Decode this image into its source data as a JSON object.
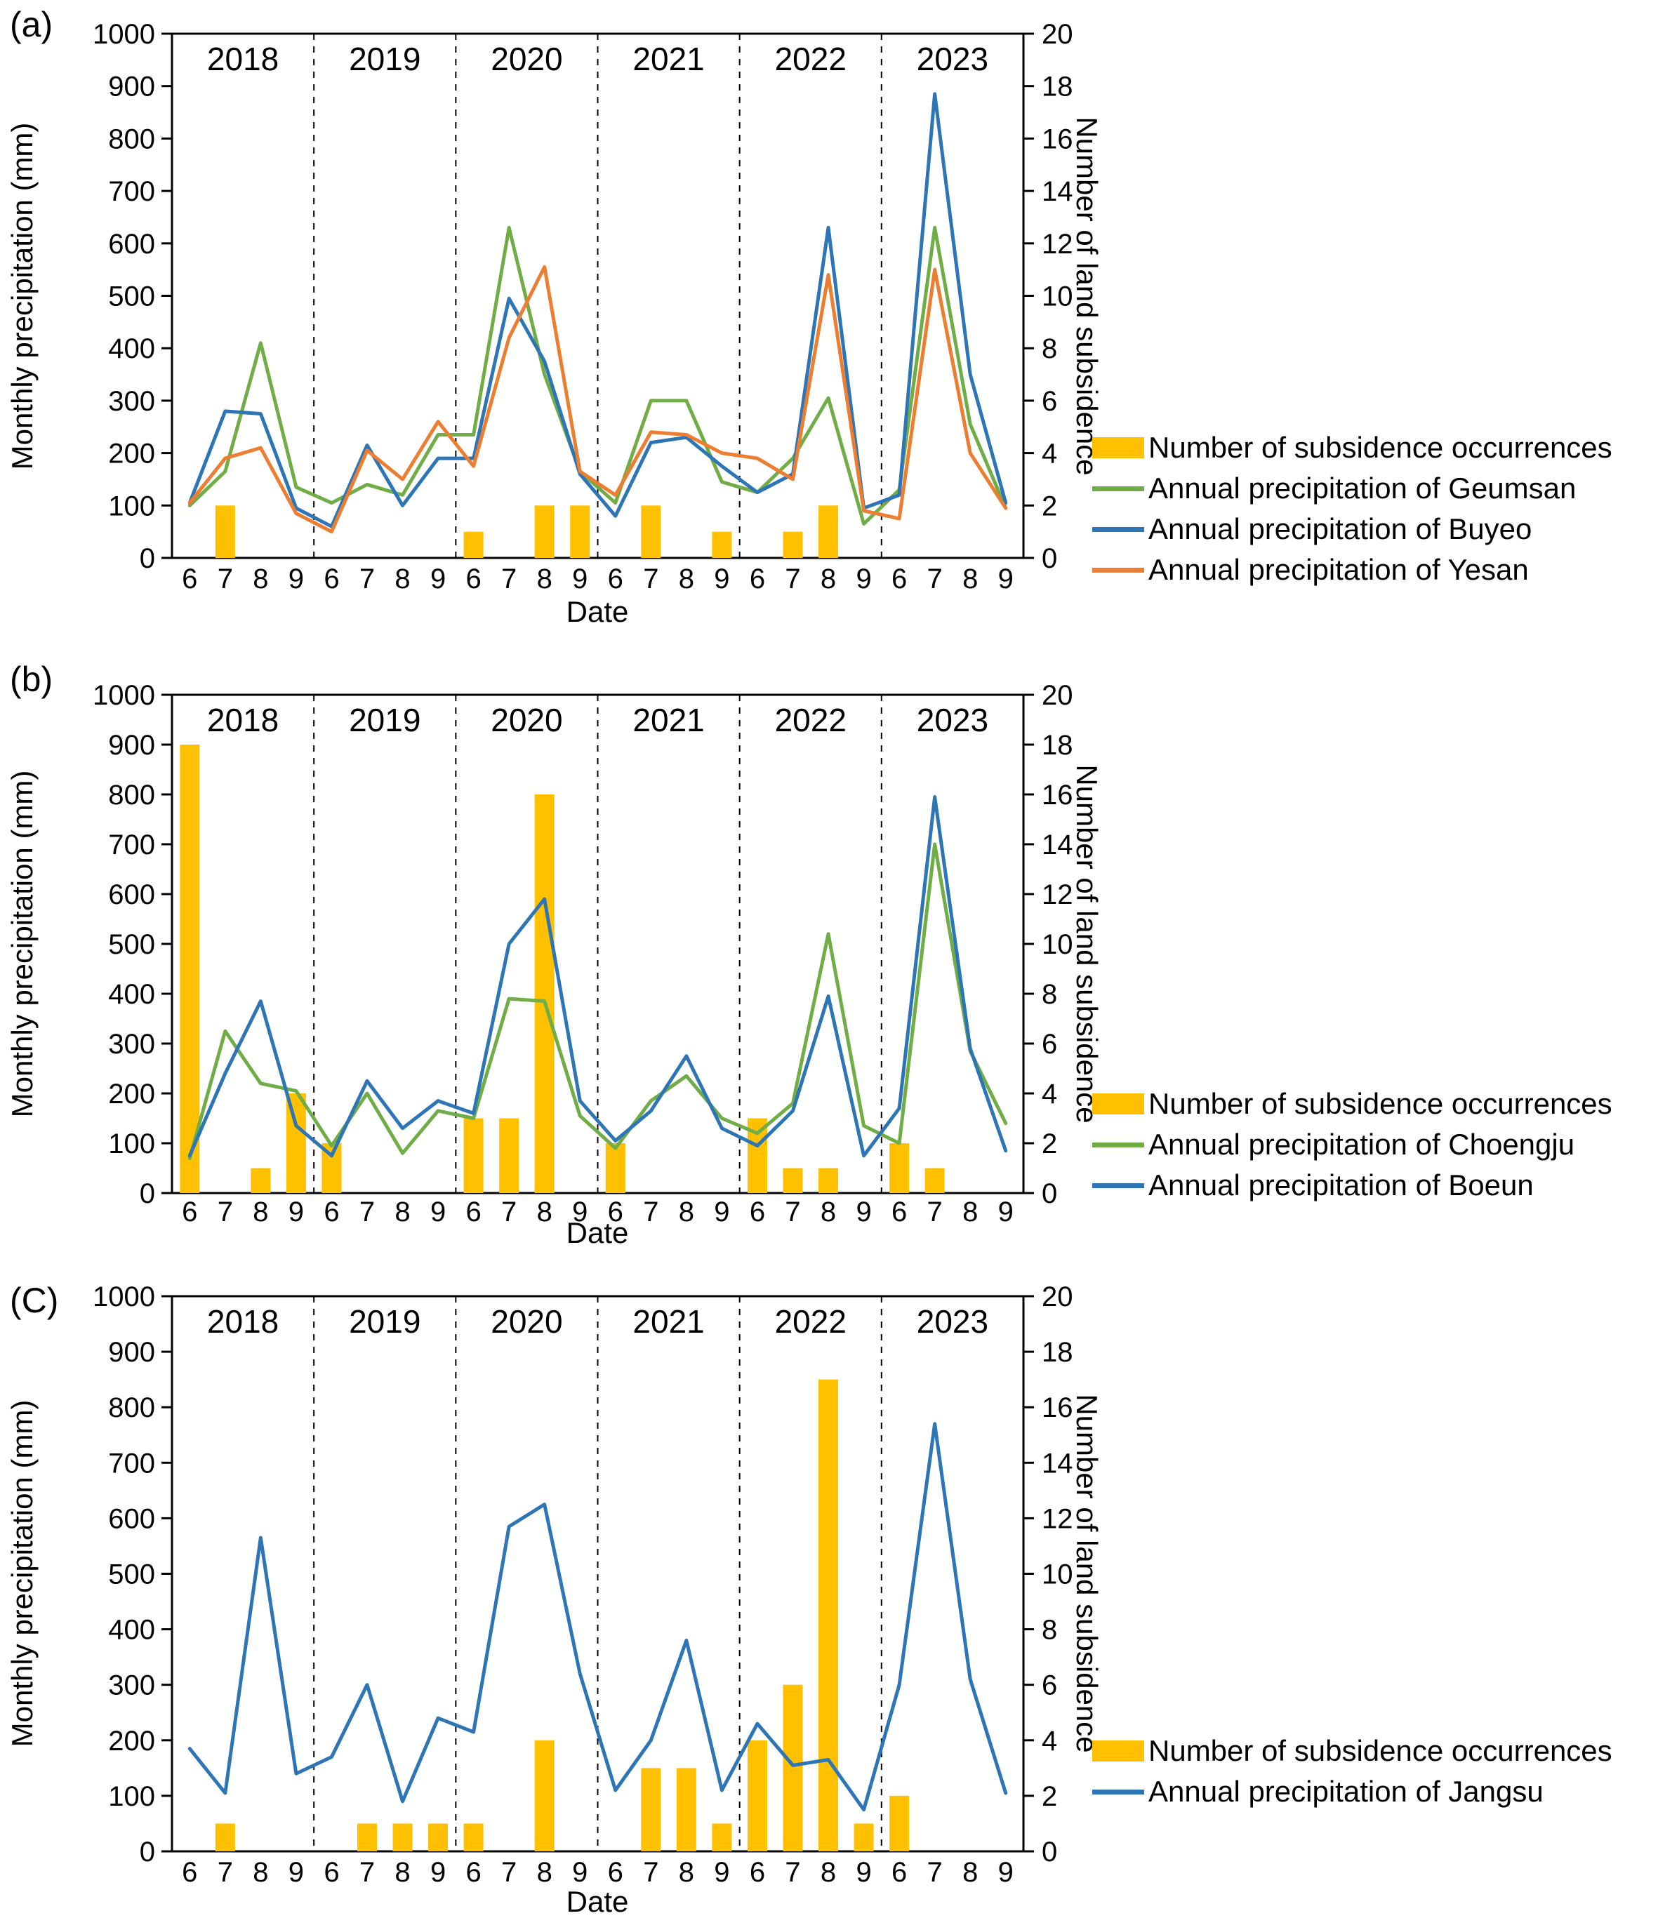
{
  "figure_title": "",
  "chart_data": [
    {
      "panel_label": "(a)",
      "type": "bar+line",
      "title_years": [
        "2018",
        "2019",
        "2020",
        "2021",
        "2022",
        "2023"
      ],
      "months_per_year": [
        "6",
        "7",
        "8",
        "9"
      ],
      "xlabel": "Date",
      "ylabel_left": "Monthly precipitation (mm)",
      "ylabel_right": "Number of land subsidence",
      "ylim_left": [
        0,
        1000
      ],
      "ytick_step_left": 100,
      "ylim_right": [
        0,
        20
      ],
      "ytick_step_right": 2,
      "grid": "off",
      "legend_position": "right-bottom",
      "bar_series": {
        "name": "Number of subsidence occurrences",
        "color": "#FFC000",
        "axis": "right",
        "values": [
          0,
          2,
          0,
          0,
          0,
          0,
          0,
          0,
          1,
          0,
          2,
          2,
          0,
          2,
          0,
          1,
          0,
          1,
          2,
          0,
          0,
          0,
          0,
          0
        ]
      },
      "line_series": [
        {
          "name": "Annual precipitation of Geumsan",
          "color": "#70AD47",
          "values": [
            100,
            165,
            410,
            135,
            105,
            140,
            120,
            235,
            235,
            630,
            350,
            165,
            105,
            300,
            300,
            145,
            125,
            190,
            305,
            65,
            130,
            630,
            255,
            95
          ]
        },
        {
          "name": "Annual precipitation of Buyeo",
          "color": "#2E75B6",
          "values": [
            105,
            280,
            275,
            95,
            60,
            215,
            100,
            190,
            190,
            495,
            375,
            160,
            80,
            220,
            230,
            175,
            125,
            160,
            630,
            95,
            120,
            885,
            350,
            105
          ]
        },
        {
          "name": "Annual precipitation of Yesan",
          "color": "#ED7D31",
          "values": [
            105,
            190,
            210,
            85,
            50,
            205,
            150,
            260,
            175,
            420,
            555,
            165,
            120,
            240,
            235,
            200,
            190,
            150,
            540,
            90,
            75,
            550,
            200,
            95
          ]
        }
      ]
    },
    {
      "panel_label": "(b)",
      "type": "bar+line",
      "title_years": [
        "2018",
        "2019",
        "2020",
        "2021",
        "2022",
        "2023"
      ],
      "months_per_year": [
        "6",
        "7",
        "8",
        "9"
      ],
      "xlabel": "Date",
      "ylabel_left": "Monthly precipitation (mm)",
      "ylabel_right": "Number of land subsidence",
      "ylim_left": [
        0,
        1000
      ],
      "ytick_step_left": 100,
      "ylim_right": [
        0,
        20
      ],
      "ytick_step_right": 2,
      "grid": "off",
      "legend_position": "right-bottom",
      "bar_series": {
        "name": "Number of subsidence occurrences",
        "color": "#FFC000",
        "axis": "right",
        "values": [
          18,
          0,
          1,
          4,
          2,
          0,
          0,
          0,
          3,
          3,
          16,
          0,
          2,
          0,
          0,
          0,
          3,
          1,
          1,
          0,
          2,
          1,
          0,
          0
        ]
      },
      "line_series": [
        {
          "name": "Annual precipitation of Choengju",
          "color": "#70AD47",
          "values": [
            70,
            325,
            220,
            205,
            95,
            200,
            80,
            165,
            150,
            390,
            385,
            155,
            90,
            185,
            235,
            150,
            120,
            180,
            520,
            135,
            100,
            700,
            285,
            140
          ]
        },
        {
          "name": "Annual precipitation of Boeun",
          "color": "#2E75B6",
          "values": [
            75,
            240,
            385,
            135,
            75,
            225,
            130,
            185,
            160,
            500,
            590,
            185,
            105,
            165,
            275,
            130,
            95,
            165,
            395,
            75,
            170,
            795,
            290,
            85
          ]
        }
      ]
    },
    {
      "panel_label": "(C)",
      "type": "bar+line",
      "title_years": [
        "2018",
        "2019",
        "2020",
        "2021",
        "2022",
        "2023"
      ],
      "months_per_year": [
        "6",
        "7",
        "8",
        "9"
      ],
      "xlabel": "Date",
      "ylabel_left": "Monthly precipitation (mm)",
      "ylabel_right": "Number of land subsidence",
      "ylim_left": [
        0,
        1000
      ],
      "ytick_step_left": 100,
      "ylim_right": [
        0,
        20
      ],
      "ytick_step_right": 2,
      "grid": "off",
      "legend_position": "right-bottom",
      "bar_series": {
        "name": "Number of subsidence occurrences",
        "color": "#FFC000",
        "axis": "right",
        "values": [
          0,
          1,
          0,
          0,
          0,
          1,
          1,
          1,
          1,
          0,
          4,
          0,
          0,
          3,
          3,
          1,
          4,
          6,
          17,
          1,
          2,
          0,
          0,
          0
        ]
      },
      "line_series": [
        {
          "name": "Annual precipitation of Jangsu",
          "color": "#2E75B6",
          "values": [
            185,
            105,
            565,
            140,
            170,
            300,
            90,
            240,
            215,
            585,
            625,
            320,
            110,
            200,
            380,
            110,
            230,
            155,
            165,
            75,
            300,
            770,
            310,
            105
          ]
        }
      ]
    }
  ]
}
